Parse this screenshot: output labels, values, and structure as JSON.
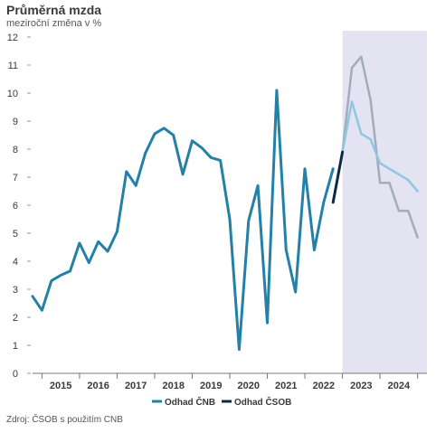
{
  "chart_data": {
    "type": "line",
    "title": "Průměrná mzda",
    "subtitle": "meziroční změna v %",
    "ylim": [
      0,
      12
    ],
    "yticks": [
      0,
      1,
      2,
      3,
      4,
      5,
      6,
      7,
      8,
      9,
      10,
      11,
      12
    ],
    "xlim": [
      2014.25,
      2024.75
    ],
    "x_tick_labels": [
      "2015",
      "2016",
      "2017",
      "2018",
      "2019",
      "2020",
      "2021",
      "2022",
      "2023",
      "2024"
    ],
    "forecast_region": {
      "x_start": 2022.5,
      "x_end": 2024.75,
      "color": "#e3e3f2"
    },
    "series": [
      {
        "id": "actual",
        "color": "#2380a6",
        "x": [
          2014.25,
          2014.5,
          2014.75,
          2015.0,
          2015.25,
          2015.5,
          2015.75,
          2016.0,
          2016.25,
          2016.5,
          2016.75,
          2017.0,
          2017.25,
          2017.5,
          2017.75,
          2018.0,
          2018.25,
          2018.5,
          2018.75,
          2019.0,
          2019.25,
          2019.5,
          2019.75,
          2020.0,
          2020.25,
          2020.5,
          2020.75,
          2021.0,
          2021.25,
          2021.5,
          2021.75,
          2022.0,
          2022.25
        ],
        "values": [
          2.75,
          2.25,
          3.3,
          3.5,
          3.65,
          4.65,
          3.95,
          4.7,
          4.35,
          5.05,
          7.2,
          6.7,
          7.85,
          8.55,
          8.75,
          8.5,
          7.1,
          8.3,
          8.05,
          7.7,
          7.6,
          5.5,
          0.85,
          5.45,
          6.7,
          1.8,
          10.1,
          4.4,
          2.9,
          7.3,
          4.4,
          6.1,
          7.3
        ]
      },
      {
        "id": "csob_bridge",
        "color": "#0b2b45",
        "x": [
          2022.25,
          2022.5
        ],
        "values": [
          6.1,
          7.9
        ]
      },
      {
        "id": "cnb",
        "name": "Odhad ČNB",
        "color": "#90c7de",
        "x": [
          2022.5,
          2022.75,
          2023.0,
          2023.25,
          2023.5,
          2023.75,
          2024.0,
          2024.25,
          2024.5
        ],
        "values": [
          7.9,
          9.7,
          8.55,
          8.35,
          7.5,
          7.3,
          7.1,
          6.9,
          6.5
        ]
      },
      {
        "id": "csob",
        "name": "Odhad ČSOB",
        "color": "#a3acbe",
        "x": [
          2022.5,
          2022.75,
          2023.0,
          2023.25,
          2023.5,
          2023.75,
          2024.0,
          2024.25,
          2024.5
        ],
        "values": [
          7.9,
          10.9,
          11.3,
          9.75,
          6.8,
          6.8,
          5.8,
          5.8,
          4.85
        ]
      }
    ],
    "legend": [
      {
        "label": "Odhad ČNB",
        "color": "#2380a6"
      },
      {
        "label": "Odhad ČSOB",
        "color": "#0b2b45"
      }
    ],
    "legend_position": "bottom",
    "source": "Zdroj: ČSOB s použitím CNB"
  }
}
